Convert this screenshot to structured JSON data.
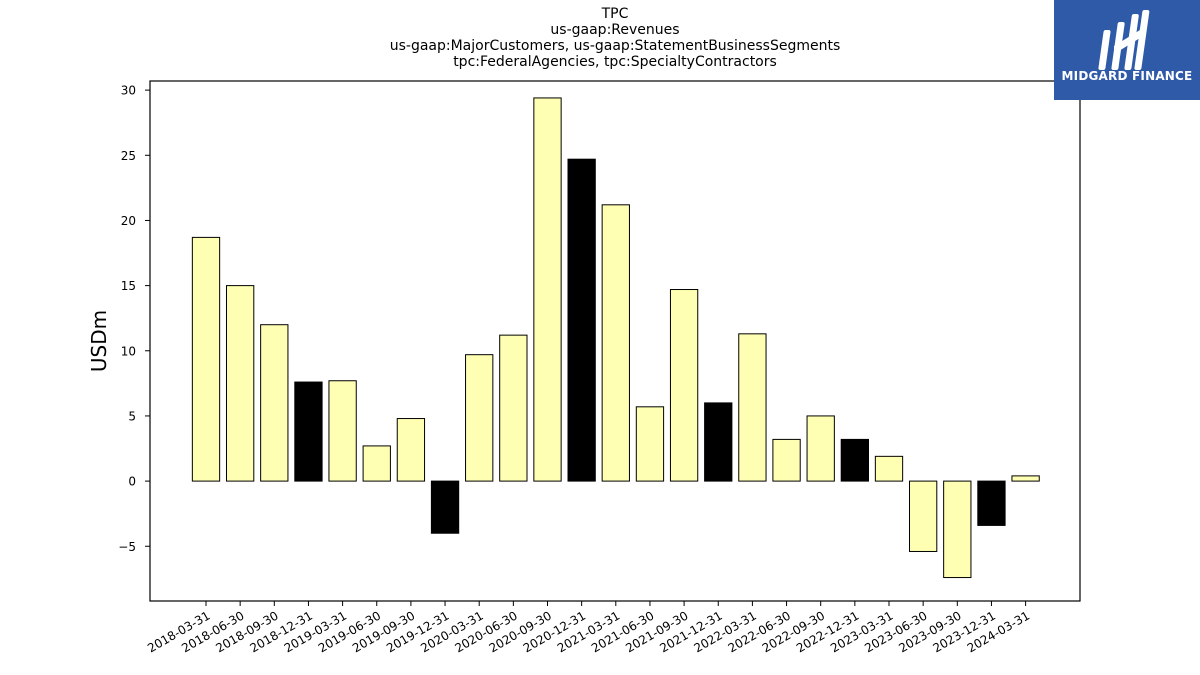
{
  "header": {
    "lines": [
      "TPC",
      "us-gaap:Revenues",
      "us-gaap:MajorCustomers, us-gaap:StatementBusinessSegments",
      "tpc:FederalAgencies, tpc:SpecialtyContractors"
    ]
  },
  "logo": {
    "text": "MIDGARD FINANCE",
    "icon": "mf-monogram-icon",
    "background": "#2f5aa8"
  },
  "colors": {
    "q_bar": "#ffffb3",
    "q4_bar": "#000000",
    "bar_edge": "#000000"
  },
  "chart_data": {
    "type": "bar",
    "title": "TPC\nus-gaap:Revenues\nus-gaap:MajorCustomers, us-gaap:StatementBusinessSegments\ntpc:FederalAgencies, tpc:SpecialtyContractors",
    "xlabel": "",
    "ylabel": "USDm",
    "ylim": [
      -9.2,
      30.7
    ],
    "yticks": [
      -5,
      0,
      5,
      10,
      15,
      20,
      25,
      30
    ],
    "ytick_labels": [
      "−5",
      "0",
      "5",
      "10",
      "15",
      "20",
      "25",
      "30"
    ],
    "grid": false,
    "categories": [
      "2018-03-31",
      "2018-06-30",
      "2018-09-30",
      "2018-12-31",
      "2019-03-31",
      "2019-06-30",
      "2019-09-30",
      "2019-12-31",
      "2020-03-31",
      "2020-06-30",
      "2020-09-30",
      "2020-12-31",
      "2021-03-31",
      "2021-06-30",
      "2021-09-30",
      "2021-12-31",
      "2022-03-31",
      "2022-06-30",
      "2022-09-30",
      "2022-12-31",
      "2023-03-31",
      "2023-06-30",
      "2023-09-30",
      "2023-12-31",
      "2024-03-31"
    ],
    "values": [
      18.7,
      15.0,
      12.0,
      7.6,
      7.7,
      2.7,
      4.8,
      -4.0,
      9.7,
      11.2,
      29.4,
      24.7,
      21.2,
      5.7,
      14.7,
      6.0,
      11.3,
      3.2,
      5.0,
      3.2,
      1.9,
      -5.4,
      -7.4,
      -3.4,
      0.4
    ]
  }
}
